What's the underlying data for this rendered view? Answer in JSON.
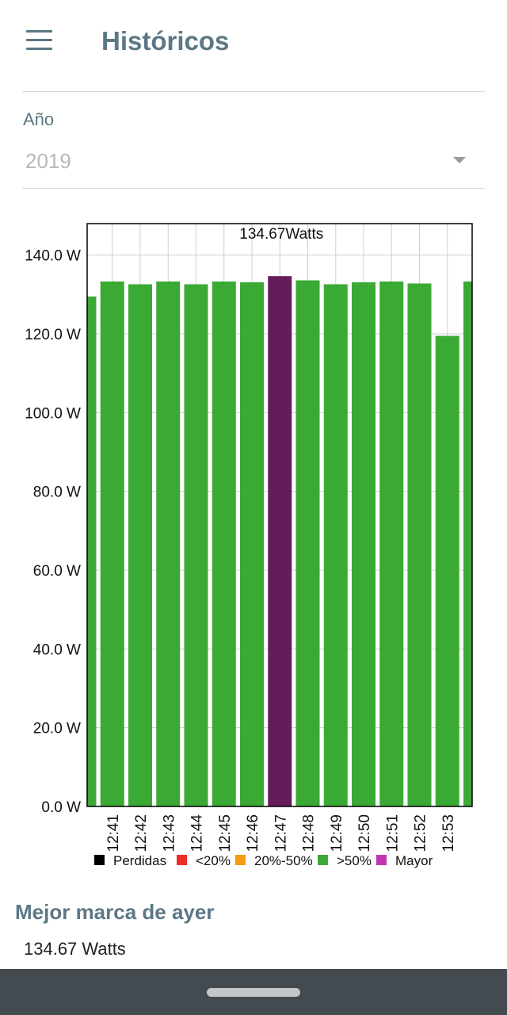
{
  "header": {
    "title": "Históricos"
  },
  "year_filter": {
    "label": "Año",
    "value": "2019"
  },
  "chart_data": {
    "type": "bar",
    "categories": [
      "",
      "12:41",
      "12:42",
      "12:43",
      "12:44",
      "12:45",
      "12:46",
      "12:47",
      "12:48",
      "12:49",
      "12:50",
      "12:51",
      "12:52",
      "12:53",
      ""
    ],
    "values": [
      129.5,
      133.3,
      132.6,
      133.3,
      132.6,
      133.3,
      133.1,
      134.67,
      133.6,
      132.6,
      133.1,
      133.3,
      132.8,
      119.5,
      133.3
    ],
    "highlight_index": 7,
    "highlight_label": "134.67Watts",
    "yticks": [
      "0.0 W",
      "20.0 W",
      "40.0 W",
      "60.0 W",
      "80.0 W",
      "100.0 W",
      "120.0 W",
      "140.0 W"
    ],
    "ylim": [
      0,
      148
    ],
    "grid": true,
    "colors": {
      "bar": "#3aaa35",
      "highlight": "#651d5a",
      "grid": "#cfcfcf",
      "axis": "#000000"
    },
    "legend": {
      "placement": "bottom",
      "items": [
        {
          "label": "Perdidas",
          "color": "#000000"
        },
        {
          "label": "<20%",
          "color": "#ee2b24"
        },
        {
          "label": "20%-50%",
          "color": "#f39c12"
        },
        {
          "label": ">50%",
          "color": "#3aaa35"
        },
        {
          "label": "Mayor",
          "color": "#c036b4"
        }
      ]
    }
  },
  "best_mark": {
    "title": "Mejor marca de ayer",
    "value": "134.67 Watts"
  }
}
